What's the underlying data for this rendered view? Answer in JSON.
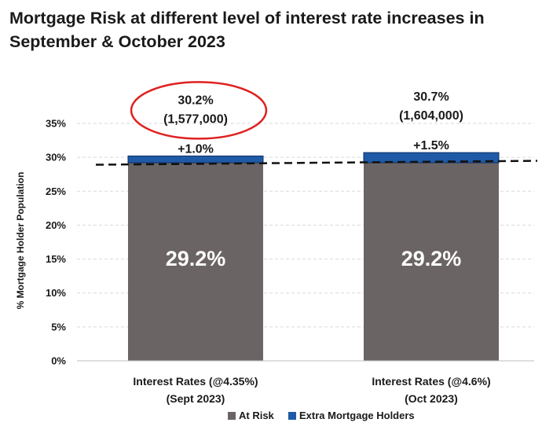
{
  "chart_data": {
    "type": "bar",
    "stacked": true,
    "title": "Mortgage Risk at different level of interest rate increases in September & October 2023",
    "ylabel": "% Mortgage Holder Population",
    "ylim": [
      0,
      35
    ],
    "yticks": [
      "0%",
      "5%",
      "10%",
      "15%",
      "20%",
      "25%",
      "30%",
      "35%"
    ],
    "grid": true,
    "categories": [
      [
        "Interest Rates (@4.35%)",
        "(Sept 2023)"
      ],
      [
        "Interest Rates   (@4.6%)",
        "(Oct 2023)"
      ]
    ],
    "series": [
      {
        "name": "At Risk",
        "color": "#6b6464",
        "values": [
          29.2,
          29.2
        ],
        "labels": [
          "29.2%",
          "29.2%"
        ]
      },
      {
        "name": "Extra Mortgage Holders",
        "color": "#1f5aa6",
        "values": [
          1.0,
          1.5
        ],
        "labels": [
          "+1.0%",
          "+1.5%"
        ]
      }
    ],
    "totals": [
      {
        "percent": "30.2%",
        "count": "(1,577,000)"
      },
      {
        "percent": "30.7%",
        "count": "(1,604,000)"
      }
    ],
    "baseline_value": 29.2,
    "highlight_color": "#e02020",
    "legend": "bottom"
  }
}
